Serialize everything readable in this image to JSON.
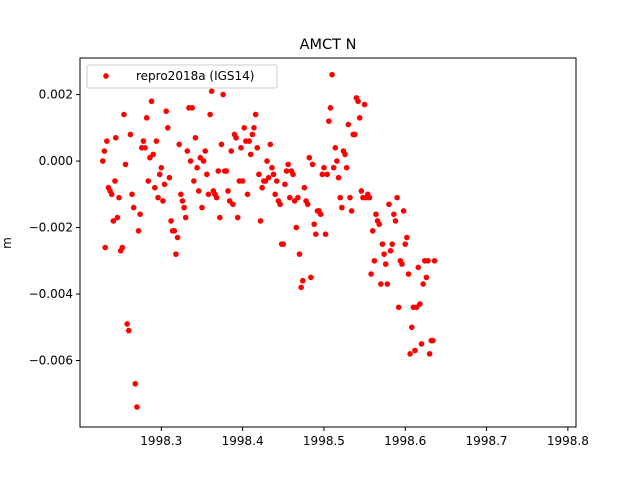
{
  "chart_data": {
    "type": "scatter",
    "title": "AMCT N",
    "xlabel": "",
    "ylabel": "m",
    "xlim": [
      1998.2,
      1998.81
    ],
    "ylim": [
      -0.008,
      0.0031
    ],
    "xticks": [
      1998.3,
      1998.4,
      1998.5,
      1998.6,
      1998.7,
      1998.8
    ],
    "xtick_labels": [
      "1998.3",
      "1998.4",
      "1998.5",
      "1998.6",
      "1998.7",
      "1998.8"
    ],
    "yticks": [
      0.002,
      0.0,
      -0.002,
      -0.004,
      -0.006
    ],
    "ytick_labels": [
      "0.002",
      "0.000",
      "−0.002",
      "−0.004",
      "−0.006"
    ],
    "grid": false,
    "legend": {
      "placement": "top-left",
      "entries": [
        "repro2018a (IGS14)"
      ]
    },
    "marker_color": "#ff0000",
    "series": [
      {
        "name": "repro2018a (IGS14)",
        "points": [
          [
            1998.228,
            0.0
          ],
          [
            1998.23,
            0.0003
          ],
          [
            1998.231,
            -0.0026
          ],
          [
            1998.233,
            0.0006
          ],
          [
            1998.235,
            -0.0008
          ],
          [
            1998.237,
            -0.0009
          ],
          [
            1998.239,
            -0.001
          ],
          [
            1998.241,
            -0.0018
          ],
          [
            1998.243,
            -0.0006
          ],
          [
            1998.244,
            0.0007
          ],
          [
            1998.246,
            -0.0017
          ],
          [
            1998.248,
            -0.0011
          ],
          [
            1998.25,
            -0.0027
          ],
          [
            1998.252,
            -0.0026
          ],
          [
            1998.254,
            0.0014
          ],
          [
            1998.256,
            -0.0001
          ],
          [
            1998.258,
            -0.0049
          ],
          [
            1998.26,
            -0.0051
          ],
          [
            1998.262,
            0.0008
          ],
          [
            1998.264,
            -0.001
          ],
          [
            1998.266,
            -0.0014
          ],
          [
            1998.268,
            -0.0067
          ],
          [
            1998.27,
            -0.0074
          ],
          [
            1998.272,
            -0.0021
          ],
          [
            1998.274,
            -0.0016
          ],
          [
            1998.276,
            0.0004
          ],
          [
            1998.278,
            0.0006
          ],
          [
            1998.28,
            0.0004
          ],
          [
            1998.282,
            0.0013
          ],
          [
            1998.284,
            -0.0006
          ],
          [
            1998.286,
            0.0001
          ],
          [
            1998.288,
            0.0018
          ],
          [
            1998.29,
            0.0002
          ],
          [
            1998.292,
            -0.0008
          ],
          [
            1998.294,
            0.0006
          ],
          [
            1998.296,
            -0.0011
          ],
          [
            1998.298,
            -0.0004
          ],
          [
            1998.3,
            -0.0002
          ],
          [
            1998.302,
            -0.0012
          ],
          [
            1998.304,
            -0.0007
          ],
          [
            1998.306,
            0.0015
          ],
          [
            1998.308,
            0.001
          ],
          [
            1998.31,
            -0.0005
          ],
          [
            1998.312,
            -0.0018
          ],
          [
            1998.314,
            -0.0021
          ],
          [
            1998.316,
            -0.0021
          ],
          [
            1998.318,
            -0.0028
          ],
          [
            1998.32,
            -0.0023
          ],
          [
            1998.322,
            0.0005
          ],
          [
            1998.324,
            -0.001
          ],
          [
            1998.326,
            -0.0012
          ],
          [
            1998.328,
            -0.0014
          ],
          [
            1998.33,
            -0.0017
          ],
          [
            1998.332,
            0.0003
          ],
          [
            1998.334,
            0.0016
          ],
          [
            1998.336,
            0.0
          ],
          [
            1998.338,
            0.0016
          ],
          [
            1998.34,
            -0.0006
          ],
          [
            1998.342,
            0.0007
          ],
          [
            1998.344,
            -0.0002
          ],
          [
            1998.346,
            -0.0009
          ],
          [
            1998.348,
            0.0001
          ],
          [
            1998.35,
            -0.0014
          ],
          [
            1998.352,
            0.0
          ],
          [
            1998.354,
            0.0003
          ],
          [
            1998.356,
            -0.0004
          ],
          [
            1998.358,
            -0.001
          ],
          [
            1998.36,
            0.0014
          ],
          [
            1998.362,
            0.0021
          ],
          [
            1998.364,
            -0.0009
          ],
          [
            1998.366,
            -0.001
          ],
          [
            1998.368,
            -0.0011
          ],
          [
            1998.37,
            -0.0003
          ],
          [
            1998.372,
            -0.0017
          ],
          [
            1998.374,
            0.0005
          ],
          [
            1998.376,
            0.002
          ],
          [
            1998.378,
            -0.0003
          ],
          [
            1998.38,
            -0.0003
          ],
          [
            1998.382,
            -0.0009
          ],
          [
            1998.384,
            -0.0012
          ],
          [
            1998.386,
            0.0003
          ],
          [
            1998.388,
            -0.0013
          ],
          [
            1998.39,
            0.0008
          ],
          [
            1998.392,
            0.0007
          ],
          [
            1998.394,
            -0.0017
          ],
          [
            1998.396,
            -0.0006
          ],
          [
            1998.398,
            0.0004
          ],
          [
            1998.4,
            -0.0006
          ],
          [
            1998.402,
            0.001
          ],
          [
            1998.404,
            0.0006
          ],
          [
            1998.406,
            -0.001
          ],
          [
            1998.408,
            0.0006
          ],
          [
            1998.41,
            0.0002
          ],
          [
            1998.412,
            0.0008
          ],
          [
            1998.414,
            0.001
          ],
          [
            1998.416,
            0.0014
          ],
          [
            1998.418,
            0.0004
          ],
          [
            1998.42,
            -0.0004
          ],
          [
            1998.422,
            -0.0018
          ],
          [
            1998.424,
            -0.0008
          ],
          [
            1998.426,
            -0.0006
          ],
          [
            1998.428,
            -0.0006
          ],
          [
            1998.43,
            0.0
          ],
          [
            1998.432,
            -0.0005
          ],
          [
            1998.434,
            0.0005
          ],
          [
            1998.436,
            -0.0002
          ],
          [
            1998.438,
            -0.0004
          ],
          [
            1998.44,
            -0.001
          ],
          [
            1998.442,
            -0.0006
          ],
          [
            1998.444,
            -0.0012
          ],
          [
            1998.446,
            -0.0013
          ],
          [
            1998.448,
            -0.0025
          ],
          [
            1998.45,
            -0.0025
          ],
          [
            1998.452,
            -0.0007
          ],
          [
            1998.454,
            -0.0003
          ],
          [
            1998.456,
            -0.0001
          ],
          [
            1998.458,
            -0.0011
          ],
          [
            1998.46,
            -0.0003
          ],
          [
            1998.462,
            -0.0004
          ],
          [
            1998.464,
            -0.0012
          ],
          [
            1998.466,
            -0.002
          ],
          [
            1998.468,
            -0.0011
          ],
          [
            1998.47,
            -0.0028
          ],
          [
            1998.472,
            -0.0038
          ],
          [
            1998.474,
            -0.0036
          ],
          [
            1998.476,
            -0.0008
          ],
          [
            1998.478,
            -0.0012
          ],
          [
            1998.48,
            -0.0013
          ],
          [
            1998.482,
            0.0001
          ],
          [
            1998.484,
            -0.0035
          ],
          [
            1998.486,
            -0.0001
          ],
          [
            1998.488,
            -0.0019
          ],
          [
            1998.49,
            -0.0022
          ],
          [
            1998.492,
            -0.0015
          ],
          [
            1998.494,
            -0.0015
          ],
          [
            1998.496,
            -0.0016
          ],
          [
            1998.498,
            -0.0004
          ],
          [
            1998.5,
            -0.0002
          ],
          [
            1998.502,
            -0.0022
          ],
          [
            1998.504,
            -0.0004
          ],
          [
            1998.506,
            0.0012
          ],
          [
            1998.508,
            0.0016
          ],
          [
            1998.51,
            0.0026
          ],
          [
            1998.512,
            -0.0002
          ],
          [
            1998.514,
            0.0004
          ],
          [
            1998.516,
            0.0
          ],
          [
            1998.518,
            -0.0005
          ],
          [
            1998.52,
            -0.0011
          ],
          [
            1998.522,
            -0.0014
          ],
          [
            1998.524,
            0.0003
          ],
          [
            1998.526,
            0.0002
          ],
          [
            1998.528,
            -0.0002
          ],
          [
            1998.53,
            0.0011
          ],
          [
            1998.532,
            -0.0011
          ],
          [
            1998.534,
            -0.0015
          ],
          [
            1998.536,
            0.0008
          ],
          [
            1998.538,
            0.0008
          ],
          [
            1998.54,
            0.0019
          ],
          [
            1998.542,
            0.0018
          ],
          [
            1998.544,
            0.0013
          ],
          [
            1998.546,
            -0.0009
          ],
          [
            1998.548,
            -0.0011
          ],
          [
            1998.55,
            0.0017
          ],
          [
            1998.552,
            -0.0011
          ],
          [
            1998.554,
            -0.001
          ],
          [
            1998.556,
            -0.0011
          ],
          [
            1998.558,
            -0.0034
          ],
          [
            1998.56,
            -0.0021
          ],
          [
            1998.562,
            -0.003
          ],
          [
            1998.564,
            -0.0016
          ],
          [
            1998.566,
            -0.0018
          ],
          [
            1998.568,
            -0.0019
          ],
          [
            1998.57,
            -0.0037
          ],
          [
            1998.572,
            -0.0025
          ],
          [
            1998.574,
            -0.0028
          ],
          [
            1998.576,
            -0.0031
          ],
          [
            1998.578,
            -0.0037
          ],
          [
            1998.58,
            -0.0013
          ],
          [
            1998.582,
            -0.0027
          ],
          [
            1998.584,
            -0.0025
          ],
          [
            1998.586,
            -0.0016
          ],
          [
            1998.588,
            -0.0018
          ],
          [
            1998.59,
            -0.0011
          ],
          [
            1998.592,
            -0.0044
          ],
          [
            1998.594,
            -0.003
          ],
          [
            1998.596,
            -0.0031
          ],
          [
            1998.598,
            -0.0015
          ],
          [
            1998.6,
            -0.0025
          ],
          [
            1998.602,
            -0.0023
          ],
          [
            1998.604,
            -0.0034
          ],
          [
            1998.606,
            -0.0058
          ],
          [
            1998.608,
            -0.005
          ],
          [
            1998.61,
            -0.0044
          ],
          [
            1998.612,
            -0.0057
          ],
          [
            1998.614,
            -0.0044
          ],
          [
            1998.616,
            -0.0032
          ],
          [
            1998.618,
            -0.0043
          ],
          [
            1998.62,
            -0.0055
          ],
          [
            1998.622,
            -0.0037
          ],
          [
            1998.624,
            -0.003
          ],
          [
            1998.626,
            -0.0035
          ],
          [
            1998.628,
            -0.003
          ],
          [
            1998.63,
            -0.0058
          ],
          [
            1998.632,
            -0.0054
          ],
          [
            1998.634,
            -0.0054
          ],
          [
            1998.636,
            -0.003
          ]
        ]
      }
    ]
  }
}
